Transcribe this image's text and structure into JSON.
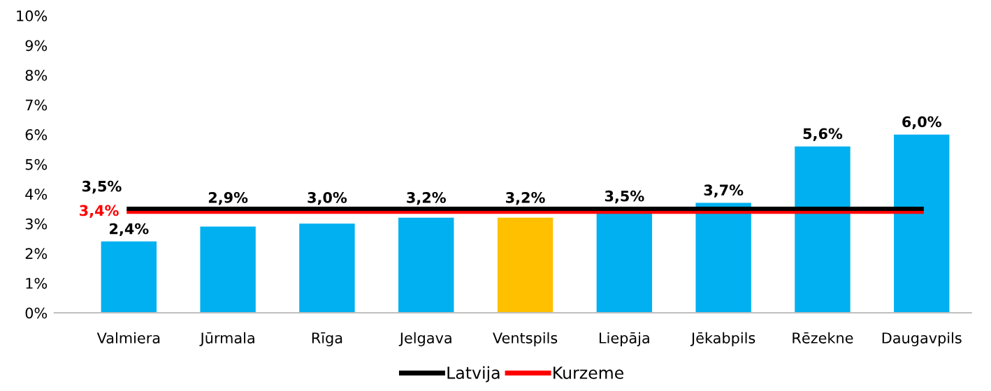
{
  "chart_data": {
    "type": "bar",
    "categories": [
      "Valmiera",
      "Jūrmala",
      "Rīga",
      "Jelgava",
      "Ventspils",
      "Liepāja",
      "Jēkabpils",
      "Rēzekne",
      "Daugavpils"
    ],
    "series": [
      {
        "colors": [
          "#00b0f0",
          "#00b0f0",
          "#00b0f0",
          "#00b0f0",
          "#ffc000",
          "#00b0f0",
          "#00b0f0",
          "#00b0f0",
          "#00b0f0"
        ],
        "values": [
          2.4,
          2.9,
          3.0,
          3.2,
          3.2,
          3.5,
          3.7,
          5.6,
          6.0
        ],
        "value_labels": [
          "2,4%",
          "2,9%",
          "3,0%",
          "3,2%",
          "3,2%",
          "3,5%",
          "3,7%",
          "5,6%",
          "6,0%"
        ]
      },
      {
        "type": "line",
        "name": "Latvija",
        "color": "#000000",
        "values": [
          3.5,
          3.5,
          3.5,
          3.5,
          3.5,
          3.5,
          3.5,
          3.5,
          3.5
        ],
        "value_labels": [
          "3,5%",
          null,
          null,
          null,
          null,
          null,
          null,
          null,
          null
        ]
      },
      {
        "type": "line",
        "name": "Kurzeme",
        "color": "#ff0000",
        "values": [
          3.4,
          3.4,
          3.4,
          3.4,
          3.4,
          3.4,
          3.4,
          3.4,
          3.4
        ],
        "value_labels": [
          "3,4%",
          null,
          null,
          null,
          null,
          null,
          null,
          null,
          null
        ]
      }
    ],
    "ylim": [
      0,
      10
    ],
    "yticks": [
      {
        "value": 0,
        "label": "0%"
      },
      {
        "value": 1,
        "label": "1%"
      },
      {
        "value": 2,
        "label": "2%"
      },
      {
        "value": 3,
        "label": "3%"
      },
      {
        "value": 4,
        "label": "4%"
      },
      {
        "value": 5,
        "label": "5%"
      },
      {
        "value": 6,
        "label": "6%"
      },
      {
        "value": 7,
        "label": "7%"
      },
      {
        "value": 8,
        "label": "8%"
      },
      {
        "value": 9,
        "label": "9%"
      },
      {
        "value": 10,
        "label": "10%"
      }
    ],
    "grid": false,
    "legend": "bottom",
    "marker": "none",
    "line_style": "solid"
  }
}
